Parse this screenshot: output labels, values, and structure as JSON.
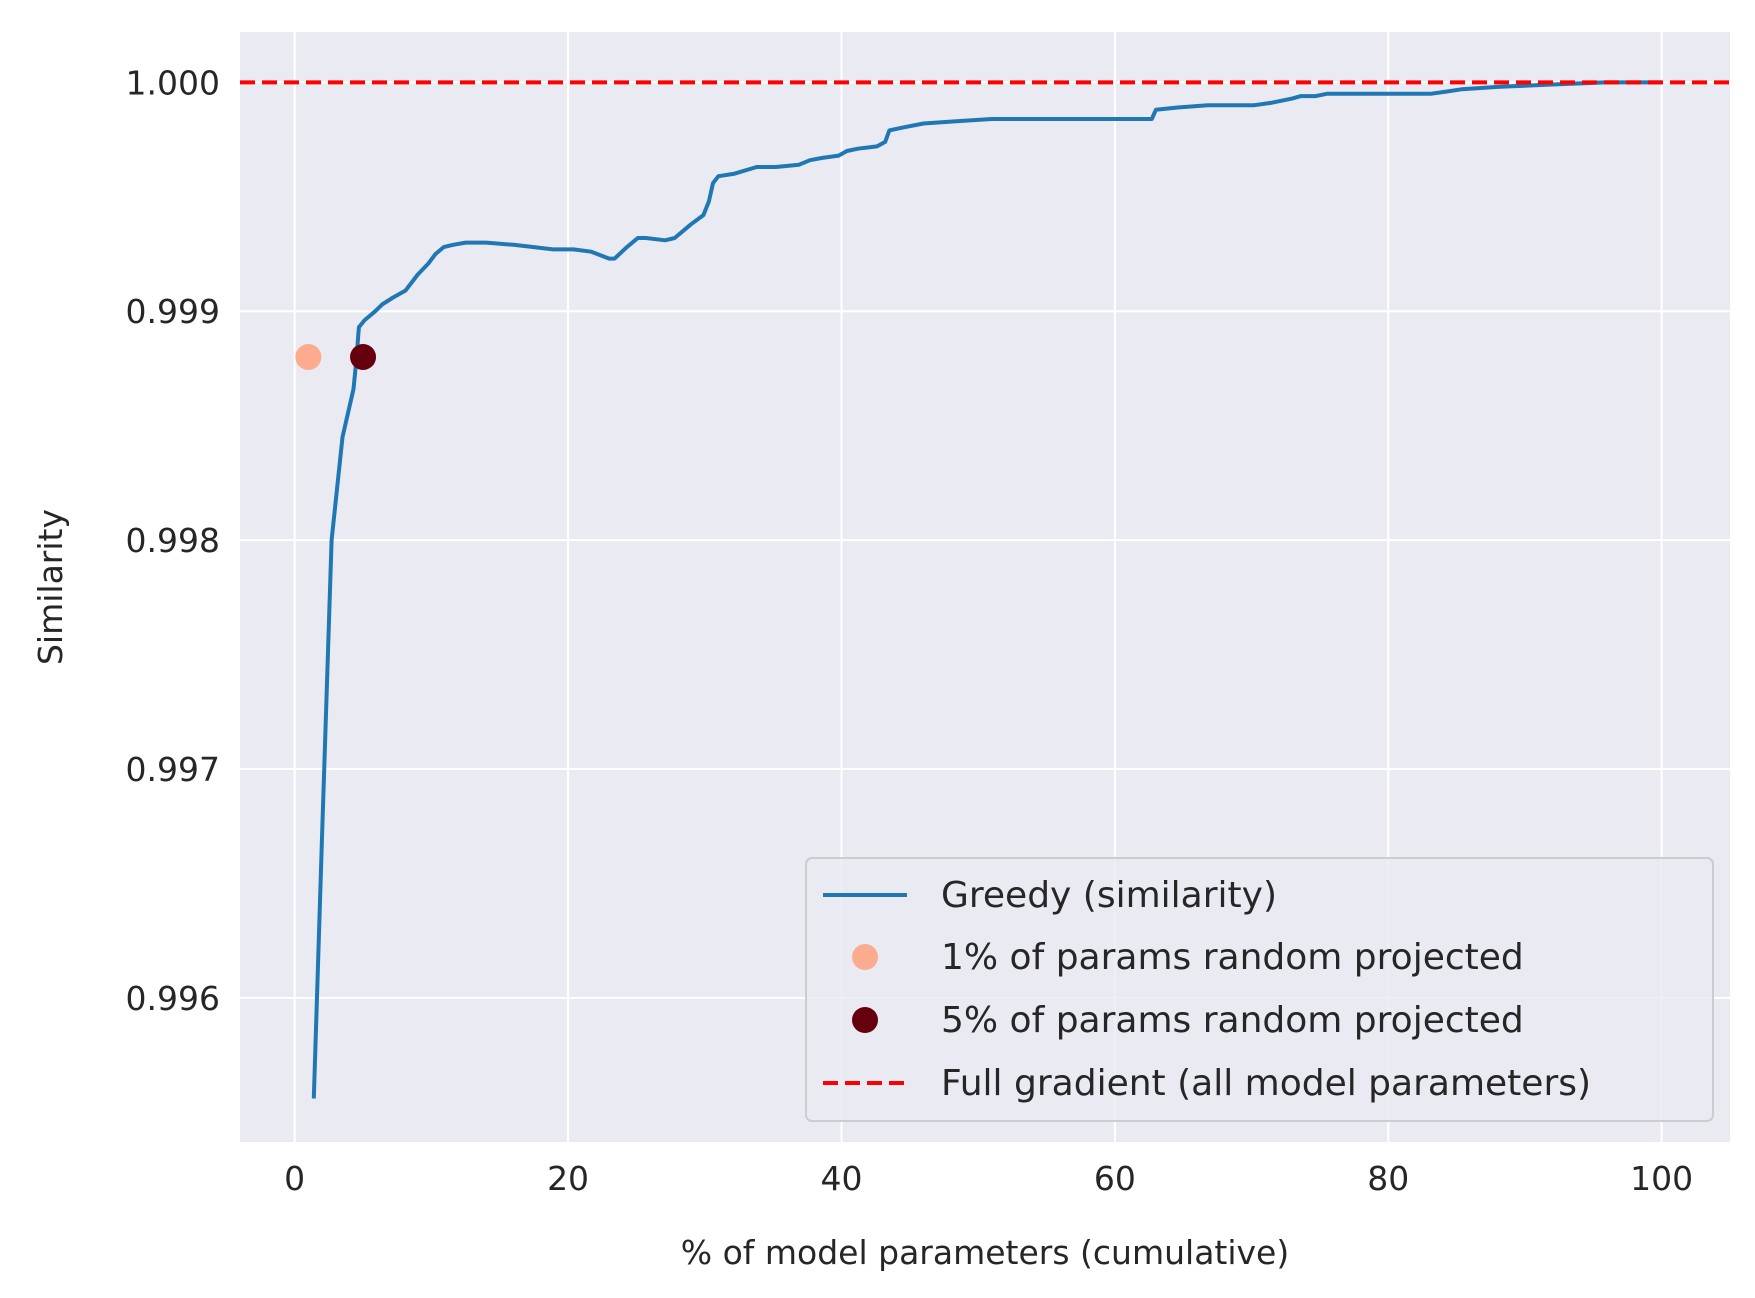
{
  "chart_data": {
    "type": "line",
    "title": "",
    "xlabel": "% of model parameters (cumulative)",
    "ylabel": "Similarity",
    "xlim": [
      -4,
      105
    ],
    "ylim": [
      0.99537,
      1.00022
    ],
    "xticks": [
      0,
      20,
      40,
      60,
      80,
      100
    ],
    "xtick_labels": [
      "0",
      "20",
      "40",
      "60",
      "80",
      "100"
    ],
    "yticks": [
      0.996,
      0.997,
      0.998,
      0.999,
      1.0
    ],
    "ytick_labels": [
      "0.996",
      "0.997",
      "0.998",
      "0.999",
      "1.000"
    ],
    "grid": true,
    "legend_position": "lower-right",
    "colors": {
      "greedy": "#1f77b4",
      "one_pct": "#fcab8f",
      "five_pct": "#67000d",
      "full": "#ff0000",
      "plot_bg": "#eaeaf2",
      "grid": "#ffffff"
    },
    "series": [
      {
        "name": "Greedy (similarity)",
        "kind": "line",
        "x": [
          1.4,
          2.0,
          2.7,
          3.5,
          4.3,
          4.5,
          4.7,
          5.1,
          5.9,
          6.4,
          7.2,
          8.1,
          9.0,
          9.8,
          10.3,
          10.9,
          11.6,
          12.5,
          14.0,
          16.0,
          17.5,
          18.9,
          20.4,
          21.7,
          23.0,
          23.4,
          24.3,
          25.1,
          25.7,
          27.1,
          27.8,
          29.0,
          29.9,
          30.3,
          30.6,
          31.0,
          32.1,
          33.8,
          35.2,
          36.9,
          37.7,
          38.6,
          39.8,
          40.4,
          41.2,
          42.6,
          43.2,
          43.5,
          44.3,
          46.0,
          48.4,
          51.0,
          54.0,
          57.0,
          60.0,
          62.2,
          62.7,
          63.0,
          64.6,
          66.8,
          68.3,
          70.2,
          71.4,
          73.0,
          73.6,
          74.7,
          75.5,
          78.0,
          80.2,
          83.1,
          84.3,
          85.4,
          88.0,
          91.8,
          95.9,
          100.0
        ],
        "y": [
          0.99556,
          0.9967,
          0.998,
          0.99845,
          0.99866,
          0.99878,
          0.99893,
          0.99896,
          0.999,
          0.99903,
          0.99906,
          0.99909,
          0.99916,
          0.99921,
          0.99925,
          0.99928,
          0.99929,
          0.9993,
          0.9993,
          0.99929,
          0.99928,
          0.99927,
          0.99927,
          0.99926,
          0.99923,
          0.99923,
          0.99928,
          0.99932,
          0.99932,
          0.99931,
          0.99932,
          0.99938,
          0.99942,
          0.99948,
          0.99956,
          0.99959,
          0.9996,
          0.99963,
          0.99963,
          0.99964,
          0.99966,
          0.99967,
          0.99968,
          0.9997,
          0.99971,
          0.99972,
          0.99974,
          0.99979,
          0.9998,
          0.99982,
          0.99983,
          0.99984,
          0.99984,
          0.99984,
          0.99984,
          0.99984,
          0.99984,
          0.99988,
          0.99989,
          0.9999,
          0.9999,
          0.9999,
          0.99991,
          0.99993,
          0.99994,
          0.99994,
          0.99995,
          0.99995,
          0.99995,
          0.99995,
          0.99996,
          0.99997,
          0.99998,
          0.99999,
          1.0,
          1.0
        ]
      },
      {
        "name": "1% of params random projected",
        "kind": "marker",
        "x": [
          1.0
        ],
        "y": [
          0.9988
        ]
      },
      {
        "name": "5% of params random projected",
        "kind": "marker",
        "x": [
          5.0
        ],
        "y": [
          0.9988
        ]
      },
      {
        "name": "Full gradient (all model parameters)",
        "kind": "hline",
        "y": 1.0
      }
    ]
  }
}
